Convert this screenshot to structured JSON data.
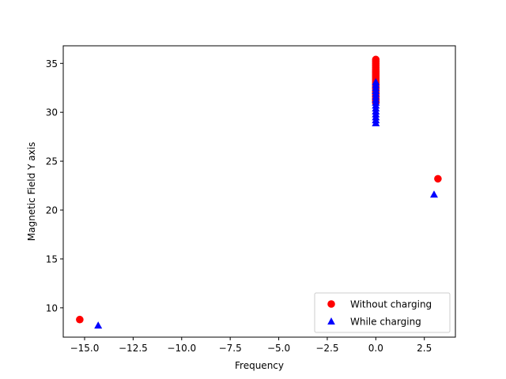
{
  "chart_data": {
    "type": "scatter",
    "title": "",
    "xlabel": "Frequency",
    "ylabel": "Magnetic Field Y axis",
    "xlim": [
      -16.1,
      4.1
    ],
    "ylim": [
      7.0,
      36.8
    ],
    "xticks": [
      -15.0,
      -12.5,
      -10.0,
      -7.5,
      -5.0,
      -2.5,
      0.0,
      2.5
    ],
    "xtick_labels": [
      "−15.0",
      "−12.5",
      "−10.0",
      "−7.5",
      "−5.0",
      "−2.5",
      "0.0",
      "2.5"
    ],
    "yticks": [
      10,
      15,
      20,
      25,
      30,
      35
    ],
    "ytick_labels": [
      "10",
      "15",
      "20",
      "25",
      "30",
      "35"
    ],
    "grid": false,
    "legend": "lower-right",
    "series": [
      {
        "name": "Without charging",
        "marker": "circle",
        "color": "#ff0000",
        "points": [
          [
            -15.25,
            8.8
          ],
          [
            3.2,
            23.2
          ],
          [
            0.0,
            35.4
          ],
          [
            0.0,
            35.2
          ],
          [
            0.0,
            35.0
          ],
          [
            0.0,
            34.8
          ],
          [
            0.0,
            34.6
          ],
          [
            0.0,
            34.4
          ],
          [
            0.0,
            34.2
          ],
          [
            0.0,
            34.0
          ],
          [
            0.0,
            33.8
          ],
          [
            0.0,
            33.6
          ],
          [
            0.0,
            33.4
          ],
          [
            0.0,
            33.2
          ],
          [
            0.0,
            33.0
          ],
          [
            0.0,
            32.8
          ],
          [
            0.0,
            32.6
          ],
          [
            0.0,
            32.4
          ],
          [
            0.0,
            32.2
          ],
          [
            0.0,
            32.0
          ],
          [
            0.0,
            31.8
          ],
          [
            0.0,
            31.6
          ],
          [
            0.0,
            31.4
          ],
          [
            0.0,
            31.2
          ],
          [
            0.0,
            31.0
          ]
        ]
      },
      {
        "name": "While charging",
        "marker": "triangle",
        "color": "#0000ff",
        "points": [
          [
            -14.3,
            8.2
          ],
          [
            3.0,
            21.6
          ],
          [
            0.0,
            33.1
          ],
          [
            0.0,
            32.8
          ],
          [
            0.0,
            32.5
          ],
          [
            0.0,
            32.2
          ],
          [
            0.0,
            31.9
          ],
          [
            0.0,
            31.6
          ],
          [
            0.0,
            31.3
          ],
          [
            0.0,
            31.0
          ],
          [
            0.0,
            30.7
          ],
          [
            0.0,
            30.4
          ],
          [
            0.0,
            30.1
          ],
          [
            0.0,
            29.8
          ],
          [
            0.0,
            29.5
          ],
          [
            0.0,
            29.2
          ],
          [
            0.0,
            28.9
          ]
        ]
      }
    ]
  }
}
